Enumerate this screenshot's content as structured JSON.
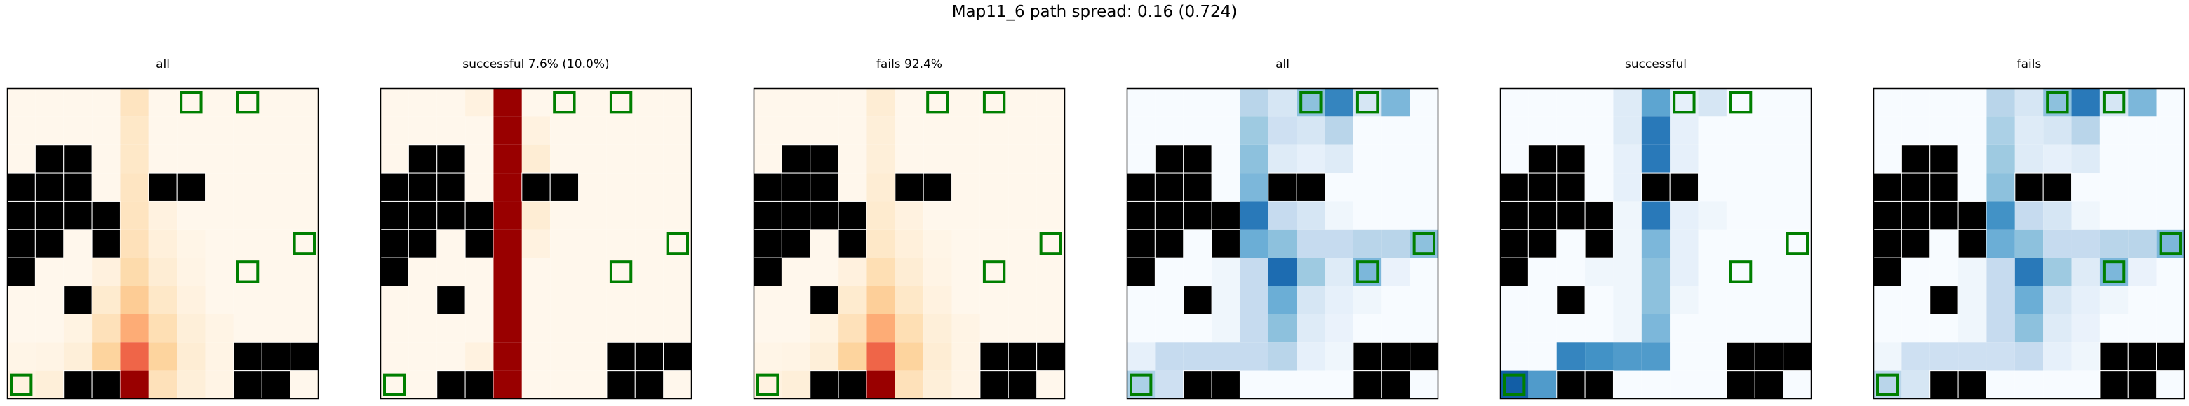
{
  "suptitle": "Map11_6 path spread: 0.16 (0.724)",
  "chart_data": [
    {
      "type": "heatmap",
      "title": "all",
      "colormap": "OrRd",
      "matrix": "all"
    },
    {
      "type": "heatmap",
      "title": "successful 7.6% (10.0%)",
      "colormap": "OrRd",
      "matrix": "success"
    },
    {
      "type": "heatmap",
      "title": "fails 92.4%",
      "colormap": "OrRd",
      "matrix": "fails"
    },
    {
      "type": "heatmap",
      "title": "all",
      "colormap": "Blues",
      "matrix": "all_b"
    },
    {
      "type": "heatmap",
      "title": "successful",
      "colormap": "Blues",
      "matrix": "success_b"
    },
    {
      "type": "heatmap",
      "title": "fails",
      "colormap": "Blues",
      "matrix": "fails_b"
    }
  ],
  "grid": {
    "rows": 11,
    "cols": 11,
    "walls": [
      [
        2,
        1
      ],
      [
        2,
        2
      ],
      [
        3,
        0
      ],
      [
        3,
        1
      ],
      [
        3,
        2
      ],
      [
        3,
        5
      ],
      [
        3,
        6
      ],
      [
        4,
        0
      ],
      [
        4,
        1
      ],
      [
        4,
        2
      ],
      [
        4,
        3
      ],
      [
        5,
        0
      ],
      [
        5,
        1
      ],
      [
        5,
        3
      ],
      [
        6,
        0
      ],
      [
        7,
        2
      ],
      [
        9,
        8
      ],
      [
        9,
        9
      ],
      [
        9,
        10
      ],
      [
        10,
        2
      ],
      [
        10,
        3
      ],
      [
        10,
        8
      ],
      [
        10,
        9
      ]
    ],
    "targets": [
      [
        0,
        6
      ],
      [
        0,
        8
      ],
      [
        5,
        10
      ],
      [
        6,
        8
      ],
      [
        10,
        0
      ]
    ]
  },
  "matrices": {
    "all": [
      [
        0,
        0,
        0,
        0,
        0.18,
        0,
        0,
        0,
        0,
        0,
        0
      ],
      [
        0,
        0,
        0,
        0,
        0.15,
        0,
        0,
        0,
        0,
        0,
        0
      ],
      [
        0,
        0,
        0,
        0,
        0.15,
        0,
        0,
        0,
        0,
        0,
        0
      ],
      [
        0,
        0,
        0,
        0,
        0.17,
        0,
        0,
        0,
        0,
        0,
        0
      ],
      [
        0,
        0,
        0,
        0.02,
        0.18,
        0.05,
        0,
        0,
        0,
        0,
        0
      ],
      [
        0,
        0,
        0,
        0.04,
        0.2,
        0.07,
        0.02,
        0,
        0,
        0,
        0
      ],
      [
        0,
        0,
        0,
        0.06,
        0.25,
        0.1,
        0.03,
        0,
        0,
        0,
        0
      ],
      [
        0,
        0,
        0.02,
        0.12,
        0.35,
        0.15,
        0.05,
        0,
        0,
        0,
        0
      ],
      [
        0,
        0,
        0.04,
        0.2,
        0.5,
        0.22,
        0.08,
        0.03,
        0,
        0,
        0
      ],
      [
        0.02,
        0.03,
        0.08,
        0.3,
        0.75,
        0.3,
        0.1,
        0.03,
        0,
        0,
        0
      ],
      [
        0.05,
        0.08,
        0,
        0,
        1.0,
        0.2,
        0.08,
        0.03,
        0,
        0,
        0
      ]
    ],
    "success": [
      [
        0,
        0,
        0,
        0.05,
        1.0,
        0,
        0,
        0,
        0,
        0,
        0
      ],
      [
        0,
        0,
        0,
        0,
        1.0,
        0.05,
        0,
        0,
        0,
        0,
        0
      ],
      [
        0,
        0,
        0,
        0,
        1.0,
        0.1,
        0,
        0,
        0,
        0,
        0
      ],
      [
        0,
        0,
        0,
        0,
        1.0,
        0,
        0,
        0,
        0,
        0,
        0
      ],
      [
        0,
        0,
        0,
        0,
        1.0,
        0.1,
        0,
        0,
        0,
        0,
        0
      ],
      [
        0,
        0,
        0,
        0,
        1.0,
        0.05,
        0,
        0,
        0,
        0,
        0
      ],
      [
        0,
        0,
        0,
        0,
        1.0,
        0,
        0,
        0,
        0,
        0,
        0
      ],
      [
        0,
        0,
        0,
        0,
        1.0,
        0,
        0,
        0,
        0,
        0,
        0
      ],
      [
        0,
        0,
        0,
        0,
        1.0,
        0,
        0,
        0,
        0,
        0,
        0
      ],
      [
        0,
        0,
        0,
        0.05,
        1.0,
        0,
        0,
        0,
        0,
        0,
        0
      ],
      [
        0,
        0,
        0,
        0,
        1.0,
        0,
        0,
        0,
        0,
        0,
        0
      ]
    ],
    "fails": [
      [
        0,
        0,
        0,
        0,
        0.1,
        0,
        0,
        0,
        0,
        0,
        0
      ],
      [
        0,
        0,
        0,
        0,
        0.08,
        0,
        0,
        0,
        0,
        0,
        0
      ],
      [
        0,
        0,
        0,
        0,
        0.08,
        0,
        0,
        0,
        0,
        0,
        0
      ],
      [
        0,
        0,
        0,
        0,
        0.1,
        0,
        0,
        0,
        0,
        0,
        0
      ],
      [
        0,
        0,
        0,
        0.02,
        0.12,
        0.05,
        0,
        0,
        0,
        0,
        0
      ],
      [
        0,
        0,
        0,
        0.04,
        0.15,
        0.07,
        0.02,
        0,
        0,
        0,
        0
      ],
      [
        0,
        0,
        0,
        0.06,
        0.22,
        0.1,
        0.03,
        0,
        0,
        0,
        0
      ],
      [
        0,
        0,
        0.02,
        0.12,
        0.33,
        0.15,
        0.05,
        0,
        0,
        0,
        0
      ],
      [
        0,
        0,
        0.04,
        0.2,
        0.5,
        0.22,
        0.08,
        0.03,
        0,
        0,
        0
      ],
      [
        0.02,
        0.03,
        0.08,
        0.3,
        0.75,
        0.3,
        0.1,
        0.03,
        0,
        0,
        0
      ],
      [
        0.05,
        0.08,
        0,
        0,
        1.0,
        0.2,
        0.08,
        0.03,
        0,
        0,
        0
      ]
    ],
    "all_b": [
      [
        0,
        0,
        0,
        0,
        0.35,
        0.2,
        0.5,
        0.8,
        0.2,
        0.55,
        0
      ],
      [
        0,
        0,
        0,
        0,
        0.45,
        0.25,
        0.2,
        0.35,
        0,
        0,
        0
      ],
      [
        0,
        0,
        0,
        0,
        0.5,
        0.15,
        0.1,
        0.15,
        0,
        0,
        0
      ],
      [
        0,
        0,
        0,
        0,
        0.55,
        0.15,
        0.1,
        0,
        0,
        0,
        0
      ],
      [
        0,
        0,
        0,
        0,
        0.85,
        0.3,
        0.2,
        0.05,
        0,
        0,
        0
      ],
      [
        0,
        0,
        0,
        0,
        0.6,
        0.5,
        0.3,
        0.3,
        0.35,
        0.35,
        0.5
      ],
      [
        0,
        0,
        0,
        0.05,
        0.3,
        0.9,
        0.45,
        0.15,
        0.55,
        0.08,
        0
      ],
      [
        0,
        0,
        0,
        0.05,
        0.3,
        0.6,
        0.2,
        0.1,
        0.05,
        0,
        0
      ],
      [
        0,
        0,
        0,
        0.05,
        0.3,
        0.5,
        0.15,
        0.08,
        0,
        0,
        0
      ],
      [
        0.1,
        0.3,
        0.3,
        0.3,
        0.3,
        0.35,
        0.1,
        0.05,
        0,
        0,
        0
      ],
      [
        0.4,
        0.25,
        0.15,
        0,
        0,
        0,
        0,
        0,
        0,
        0,
        0
      ]
    ],
    "success_b": [
      [
        0,
        0,
        0,
        0,
        0.15,
        0.65,
        0.1,
        0.2,
        0,
        0,
        0
      ],
      [
        0,
        0,
        0,
        0,
        0.15,
        0.85,
        0.1,
        0,
        0,
        0,
        0
      ],
      [
        0,
        0,
        0,
        0,
        0.1,
        0.85,
        0.1,
        0,
        0,
        0,
        0
      ],
      [
        0,
        0,
        0,
        0,
        0.1,
        0.85,
        0.1,
        0,
        0,
        0,
        0
      ],
      [
        0,
        0,
        0,
        0,
        0.05,
        0.85,
        0.1,
        0.05,
        0,
        0,
        0
      ],
      [
        0,
        0,
        0,
        0,
        0.05,
        0.55,
        0.1,
        0,
        0,
        0,
        0
      ],
      [
        0,
        0,
        0,
        0.05,
        0.05,
        0.5,
        0.1,
        0,
        0,
        0,
        0
      ],
      [
        0,
        0,
        0,
        0,
        0.05,
        0.5,
        0.05,
        0,
        0,
        0,
        0
      ],
      [
        0,
        0,
        0,
        0,
        0.05,
        0.55,
        0,
        0,
        0,
        0,
        0
      ],
      [
        0,
        0,
        0.8,
        0.75,
        0.7,
        0.7,
        0,
        0,
        0,
        0,
        0
      ],
      [
        0.95,
        0.7,
        0.7,
        0,
        0,
        0,
        0,
        0,
        0,
        0,
        0
      ]
    ],
    "fails_b": [
      [
        0,
        0,
        0,
        0,
        0.35,
        0.2,
        0.5,
        0.85,
        0.2,
        0.55,
        0
      ],
      [
        0,
        0,
        0,
        0,
        0.4,
        0.15,
        0.2,
        0.35,
        0,
        0,
        0
      ],
      [
        0,
        0,
        0,
        0,
        0.45,
        0.15,
        0.1,
        0.15,
        0,
        0,
        0
      ],
      [
        0,
        0,
        0,
        0,
        0.5,
        0.15,
        0.1,
        0,
        0,
        0,
        0
      ],
      [
        0,
        0,
        0,
        0,
        0.75,
        0.3,
        0.2,
        0.05,
        0,
        0,
        0
      ],
      [
        0,
        0,
        0,
        0,
        0.6,
        0.5,
        0.3,
        0.3,
        0.35,
        0.35,
        0.55
      ],
      [
        0,
        0,
        0,
        0.05,
        0.3,
        0.85,
        0.45,
        0.15,
        0.55,
        0.08,
        0
      ],
      [
        0,
        0,
        0,
        0.05,
        0.3,
        0.6,
        0.2,
        0.1,
        0.05,
        0,
        0
      ],
      [
        0,
        0,
        0,
        0.05,
        0.3,
        0.5,
        0.15,
        0.08,
        0,
        0,
        0
      ],
      [
        0.05,
        0.25,
        0.25,
        0.25,
        0.25,
        0.3,
        0.1,
        0.05,
        0,
        0,
        0
      ],
      [
        0.35,
        0.2,
        0.1,
        0,
        0,
        0,
        0,
        0,
        0,
        0,
        0
      ]
    ]
  },
  "colors": {
    "wall": "#000000",
    "target": "#007f00",
    "frame": "#000000",
    "cell_line": "#ffffff"
  }
}
